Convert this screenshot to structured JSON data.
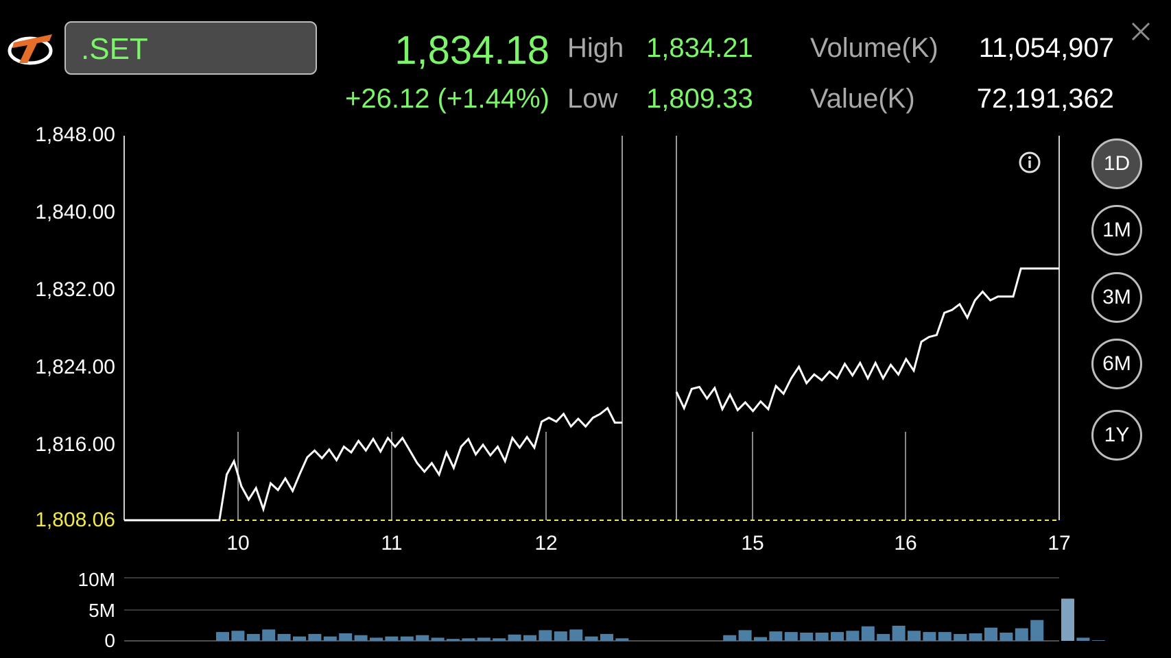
{
  "symbol": ".SET",
  "quote": {
    "last": "1,834.18",
    "change": "+26.12 (+1.44%)",
    "high_label": "High",
    "high": "1,834.21",
    "low_label": "Low",
    "low": "1,809.33",
    "volume_label": "Volume(K)",
    "volume": "11,054,907",
    "value_label": "Value(K)",
    "value": "72,191,362"
  },
  "periods": [
    "1D",
    "1M",
    "3M",
    "6M",
    "1Y"
  ],
  "active_period": "1D",
  "colors": {
    "up": "#7cf56a",
    "prev_close": "#f2e94e",
    "volume_bar": "#4d7fa5",
    "volume_bar_last": "#7fa3bf"
  },
  "chart_data": [
    {
      "type": "line",
      "ylim": [
        1808.06,
        1848.0
      ],
      "yticks": [
        "1,848.00",
        "1,840.00",
        "1,832.00",
        "1,824.00",
        "1,816.00"
      ],
      "prev_close_label": "1,808.06",
      "prev_close": 1808.06,
      "xticks": [
        "10",
        "11",
        "12",
        "15",
        "16",
        "17"
      ],
      "sessions": [
        [
          1808.06,
          1808.06,
          1808.06,
          1808.06,
          1808.06,
          1808.06,
          1808.06,
          1808.06,
          1808.06,
          1808.06,
          1808.06,
          1808.06,
          1808.06,
          1808.06,
          1812.8,
          1814.2,
          1811.6,
          1810.2,
          1811.4,
          1809.2,
          1811.9,
          1811.2,
          1812.4,
          1811.1,
          1812.9,
          1814.6,
          1815.3,
          1814.5,
          1815.4,
          1814.3,
          1815.7,
          1815.1,
          1816.3,
          1815.3,
          1816.5,
          1815.2,
          1816.6,
          1815.7,
          1816.6,
          1815.3,
          1814.0,
          1813.1,
          1814.0,
          1812.8,
          1815.1,
          1813.5,
          1815.7,
          1816.5,
          1814.9,
          1815.9,
          1814.8,
          1815.7,
          1814.2,
          1816.6,
          1815.6,
          1816.7,
          1815.6,
          1818.3,
          1818.7,
          1818.3,
          1819.1,
          1817.8,
          1818.6,
          1817.8,
          1818.7,
          1819.1,
          1819.7,
          1818.2,
          1818.2
        ],
        [
          1821.4,
          1819.7,
          1821.7,
          1821.9,
          1820.7,
          1821.8,
          1819.6,
          1821.1,
          1819.5,
          1820.3,
          1819.4,
          1820.4,
          1819.6,
          1822.0,
          1821.2,
          1822.8,
          1824.0,
          1822.3,
          1823.2,
          1822.6,
          1823.5,
          1822.8,
          1824.3,
          1823.1,
          1824.4,
          1822.8,
          1824.4,
          1822.8,
          1824.2,
          1823.2,
          1824.8,
          1823.6,
          1826.6,
          1827.1,
          1827.3,
          1829.6,
          1829.9,
          1830.5,
          1829.1,
          1830.9,
          1831.8,
          1830.9,
          1831.3,
          1831.3,
          1831.3,
          1834.2,
          1834.2,
          1834.2,
          1834.2,
          1834.2,
          1834.2
        ]
      ]
    },
    {
      "type": "bar",
      "yticks": [
        "10M",
        "5M",
        "0"
      ],
      "ylim": [
        0,
        10
      ],
      "values": [
        1.4,
        1.6,
        1.1,
        1.8,
        1.1,
        0.7,
        1.1,
        0.7,
        1.2,
        0.9,
        0.5,
        0.7,
        0.7,
        0.9,
        0.5,
        0.3,
        0.4,
        0.5,
        0.4,
        1.0,
        0.9,
        1.7,
        1.5,
        1.8,
        0.7,
        1.1,
        0.4,
        0,
        0,
        0,
        0,
        0,
        0,
        0.9,
        1.7,
        0.6,
        1.5,
        1.4,
        1.3,
        1.3,
        1.4,
        1.6,
        2.3,
        1.1,
        2.4,
        1.6,
        1.4,
        1.4,
        1.1,
        1.2,
        2.1,
        1.3,
        2.0,
        3.3,
        0,
        6.7,
        0.5,
        0.1
      ]
    }
  ]
}
